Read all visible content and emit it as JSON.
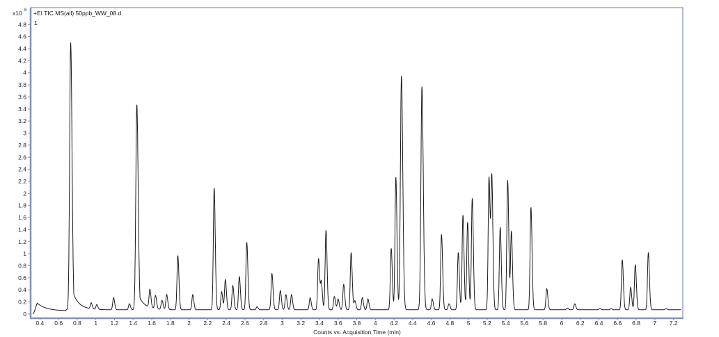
{
  "chart_data": {
    "type": "line",
    "title": "+EI TIC MS(all) 50ppb_WW_08.d",
    "trace_label": "1",
    "y_multiplier": "x10",
    "y_exponent": "8",
    "xlabel": "Counts vs. Acquisition Time (min)",
    "ylabel": "",
    "xlim": [
      0.3,
      7.3
    ],
    "ylim": [
      -0.07,
      5.08
    ],
    "x_ticks": [
      "0.4",
      "0.6",
      "0.8",
      "1",
      "1.2",
      "1.4",
      "1.6",
      "1.8",
      "2",
      "2.2",
      "2.4",
      "2.6",
      "2.8",
      "3",
      "3.2",
      "3.4",
      "3.6",
      "3.8",
      "4",
      "4.2",
      "4.4",
      "4.6",
      "4.8",
      "5",
      "5.2",
      "5.4",
      "5.6",
      "5.8",
      "6",
      "6.2",
      "6.4",
      "6.6",
      "6.8",
      "7",
      "7.2"
    ],
    "y_ticks": [
      "0",
      "0.2",
      "0.4",
      "0.6",
      "0.8",
      "1",
      "1.2",
      "1.4",
      "1.6",
      "1.8",
      "2",
      "2.2",
      "2.4",
      "2.6",
      "2.8",
      "3",
      "3.2",
      "3.4",
      "3.6",
      "3.8",
      "4",
      "4.2",
      "4.4",
      "4.6",
      "4.8"
    ],
    "grid": false,
    "line_color": "#1a1a1a",
    "frame_color": "#7f93b8",
    "peaks": [
      {
        "time": 0.73,
        "height": 4.43
      },
      {
        "time": 0.95,
        "height": 0.1
      },
      {
        "time": 1.01,
        "height": 0.08
      },
      {
        "time": 1.19,
        "height": 0.2
      },
      {
        "time": 1.36,
        "height": 0.1
      },
      {
        "time": 1.44,
        "height": 3.4
      },
      {
        "time": 1.58,
        "height": 0.3
      },
      {
        "time": 1.64,
        "height": 0.22
      },
      {
        "time": 1.71,
        "height": 0.15
      },
      {
        "time": 1.76,
        "height": 0.25
      },
      {
        "time": 1.88,
        "height": 0.9
      },
      {
        "time": 2.04,
        "height": 0.25
      },
      {
        "time": 2.27,
        "height": 2.02
      },
      {
        "time": 2.35,
        "height": 0.3
      },
      {
        "time": 2.39,
        "height": 0.5
      },
      {
        "time": 2.47,
        "height": 0.4
      },
      {
        "time": 2.54,
        "height": 0.55
      },
      {
        "time": 2.62,
        "height": 1.12
      },
      {
        "time": 2.73,
        "height": 0.05
      },
      {
        "time": 2.89,
        "height": 0.6
      },
      {
        "time": 2.98,
        "height": 0.32
      },
      {
        "time": 3.04,
        "height": 0.25
      },
      {
        "time": 3.1,
        "height": 0.25
      },
      {
        "time": 3.3,
        "height": 0.2
      },
      {
        "time": 3.39,
        "height": 0.85
      },
      {
        "time": 3.42,
        "height": 0.45
      },
      {
        "time": 3.47,
        "height": 1.32
      },
      {
        "time": 3.56,
        "height": 0.22
      },
      {
        "time": 3.6,
        "height": 0.18
      },
      {
        "time": 3.66,
        "height": 0.42
      },
      {
        "time": 3.74,
        "height": 0.95
      },
      {
        "time": 3.78,
        "height": 0.15
      },
      {
        "time": 3.86,
        "height": 0.2
      },
      {
        "time": 3.92,
        "height": 0.18
      },
      {
        "time": 4.17,
        "height": 1.02
      },
      {
        "time": 4.22,
        "height": 2.2
      },
      {
        "time": 4.28,
        "height": 3.88
      },
      {
        "time": 4.5,
        "height": 3.7
      },
      {
        "time": 4.61,
        "height": 0.18
      },
      {
        "time": 4.71,
        "height": 1.25
      },
      {
        "time": 4.79,
        "height": 0.1
      },
      {
        "time": 4.89,
        "height": 0.95
      },
      {
        "time": 4.94,
        "height": 1.57
      },
      {
        "time": 4.99,
        "height": 1.45
      },
      {
        "time": 5.04,
        "height": 1.85
      },
      {
        "time": 5.22,
        "height": 2.2
      },
      {
        "time": 5.25,
        "height": 2.18
      },
      {
        "time": 5.34,
        "height": 1.37
      },
      {
        "time": 5.42,
        "height": 2.15
      },
      {
        "time": 5.46,
        "height": 1.3
      },
      {
        "time": 5.67,
        "height": 1.7
      },
      {
        "time": 5.84,
        "height": 0.35
      },
      {
        "time": 6.06,
        "height": 0.03
      },
      {
        "time": 6.14,
        "height": 0.1
      },
      {
        "time": 6.41,
        "height": 0.02
      },
      {
        "time": 6.53,
        "height": 0.02
      },
      {
        "time": 6.65,
        "height": 0.83
      },
      {
        "time": 6.74,
        "height": 0.37
      },
      {
        "time": 6.79,
        "height": 0.75
      },
      {
        "time": 6.93,
        "height": 0.95
      },
      {
        "time": 7.12,
        "height": 0.02
      }
    ]
  }
}
